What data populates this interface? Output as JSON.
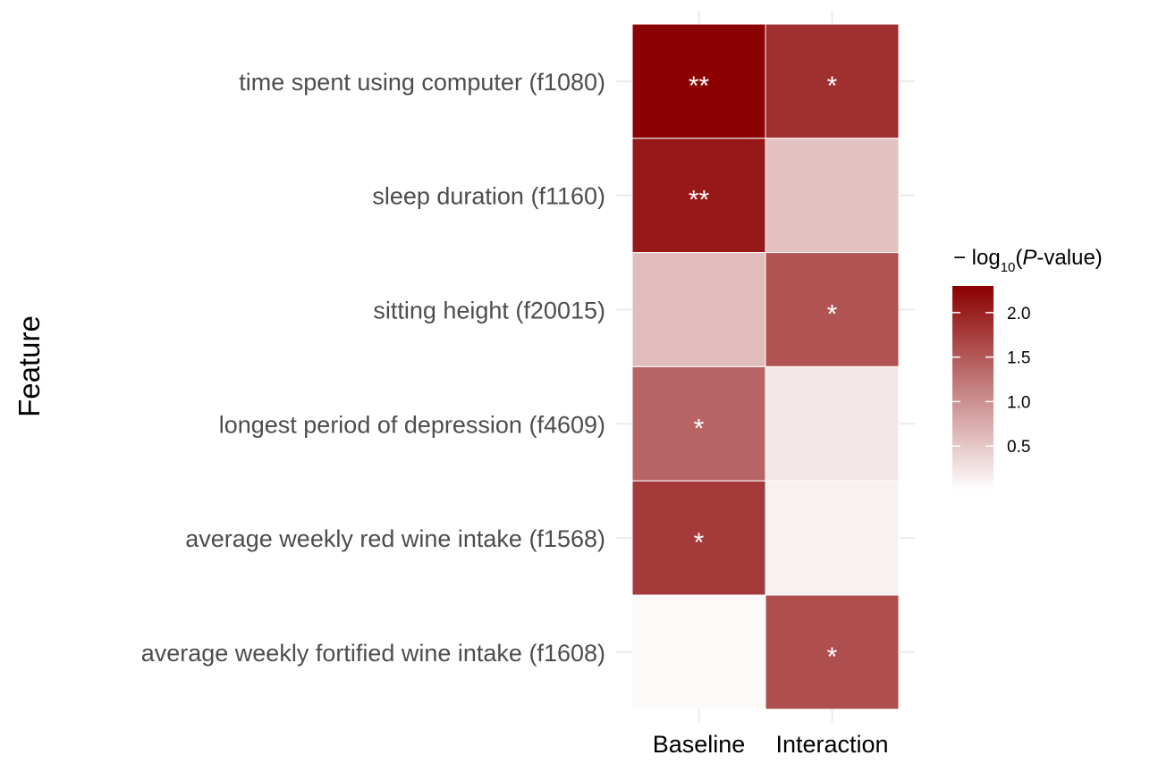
{
  "chart_data": {
    "type": "heatmap",
    "ylabel": "Feature",
    "xlabel": "",
    "x_categories": [
      "Baseline",
      "Interaction"
    ],
    "y_categories": [
      "time spent using computer (f1080)",
      "sleep duration (f1160)",
      "sitting height (f20015)",
      "longest period of depression (f4609)",
      "average weekly red wine intake (f1568)",
      "average weekly fortified wine intake (f1608)"
    ],
    "values": [
      [
        2.28,
        1.88
      ],
      [
        2.08,
        0.55
      ],
      [
        0.6,
        1.55
      ],
      [
        1.4,
        0.22
      ],
      [
        1.78,
        0.13
      ],
      [
        0.05,
        1.6
      ]
    ],
    "annotations": [
      [
        "**",
        "*"
      ],
      [
        "**",
        ""
      ],
      [
        "",
        "*"
      ],
      [
        "*",
        ""
      ],
      [
        "*",
        ""
      ],
      [
        "",
        "*"
      ]
    ],
    "colorscale": {
      "low": "#ffffff",
      "high": "#8b0000",
      "min": 0,
      "max": 2.3
    },
    "legend": {
      "title_prefix": "− log",
      "title_sub": "10",
      "title_open": "(",
      "title_p": "P",
      "title_suffix": "-value)",
      "ticks": [
        2.0,
        1.5,
        1.0,
        0.5
      ],
      "tick_labels": [
        "2.0",
        "1.5",
        "1.0",
        "0.5"
      ],
      "placement": "right"
    },
    "grid": true
  }
}
